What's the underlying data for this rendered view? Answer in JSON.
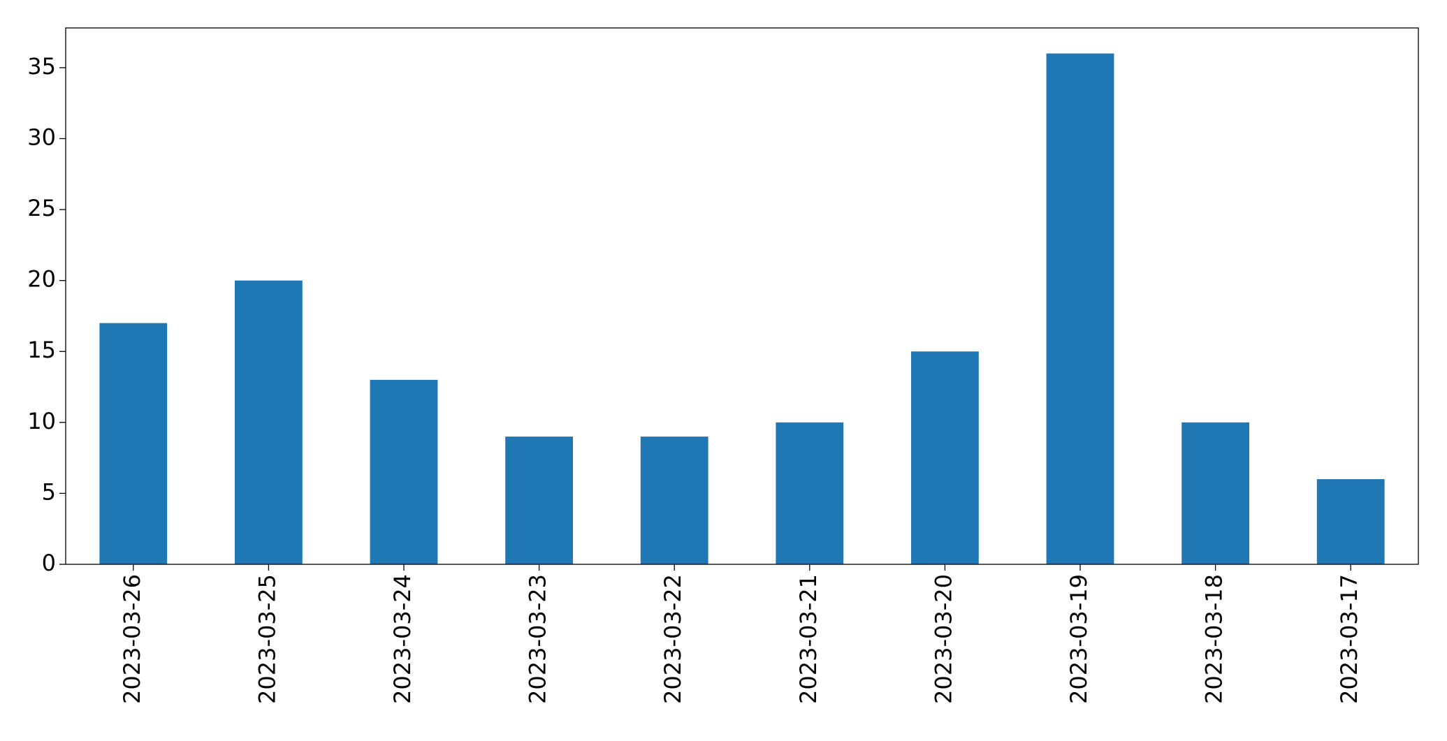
{
  "chart_data": {
    "type": "bar",
    "categories": [
      "2023-03-26",
      "2023-03-25",
      "2023-03-24",
      "2023-03-23",
      "2023-03-22",
      "2023-03-21",
      "2023-03-20",
      "2023-03-19",
      "2023-03-18",
      "2023-03-17"
    ],
    "values": [
      17,
      20,
      13,
      9,
      9,
      10,
      15,
      36,
      10,
      6
    ],
    "color": "#1f77b4",
    "ylim": [
      0,
      37.8
    ],
    "yticks": [
      0,
      5,
      10,
      15,
      20,
      25,
      30,
      35
    ],
    "grid": false
  }
}
